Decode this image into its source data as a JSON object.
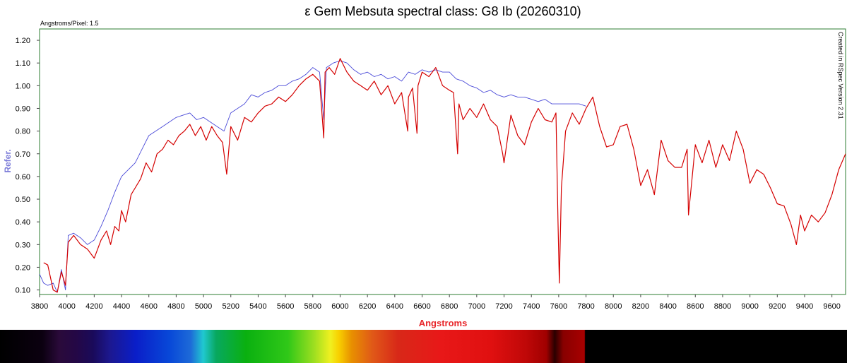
{
  "chart_data": {
    "type": "line",
    "title": "ε Gem Mebsuta spectral class: G8 Ib (20260310)",
    "dispersion_note": "Angstroms/Pixel: 1.5",
    "software_note": "Created in RSpec Version 2.31",
    "xlabel": "Angstroms",
    "ylabel": "Refer.",
    "xlim": [
      3800,
      9700
    ],
    "ylim": [
      0.08,
      1.25
    ],
    "x_ticks": [
      3800,
      4000,
      4200,
      4400,
      4600,
      4800,
      5000,
      5200,
      5400,
      5600,
      5800,
      6000,
      6200,
      6400,
      6600,
      6800,
      7000,
      7200,
      7400,
      7600,
      7800,
      8000,
      8200,
      8400,
      8600,
      8800,
      9000,
      9200,
      9400,
      9600
    ],
    "y_ticks": [
      "0.10",
      "0.20",
      "0.30",
      "0.40",
      "0.50",
      "0.60",
      "0.70",
      "0.80",
      "0.90",
      "1.00",
      "1.10",
      "1.20"
    ],
    "grid": false,
    "colors": {
      "frame": "#2e7d32",
      "observed": "#d40000",
      "reference": "#4a4ad8",
      "xlabel": "#e8262a",
      "ylabel": "#7b7bd8"
    },
    "series": [
      {
        "name": "",
        "color": "#d40000",
        "x": [
          3830,
          3860,
          3900,
          3930,
          3960,
          3990,
          4010,
          4050,
          4100,
          4150,
          4200,
          4250,
          4290,
          4320,
          4350,
          4380,
          4400,
          4430,
          4470,
          4500,
          4540,
          4580,
          4620,
          4660,
          4700,
          4740,
          4780,
          4820,
          4860,
          4900,
          4940,
          4980,
          5020,
          5060,
          5100,
          5140,
          5170,
          5200,
          5250,
          5300,
          5350,
          5400,
          5450,
          5500,
          5550,
          5600,
          5650,
          5700,
          5750,
          5800,
          5850,
          5880,
          5890,
          5920,
          5960,
          6000,
          6050,
          6100,
          6150,
          6200,
          6250,
          6300,
          6350,
          6400,
          6450,
          6495,
          6500,
          6530,
          6563,
          6570,
          6600,
          6650,
          6700,
          6750,
          6800,
          6830,
          6860,
          6870,
          6900,
          6950,
          7000,
          7050,
          7100,
          7150,
          7190,
          7200,
          7250,
          7300,
          7350,
          7400,
          7450,
          7500,
          7550,
          7580,
          7595,
          7605,
          7620,
          7650,
          7700,
          7750,
          7800,
          7850,
          7900,
          7950,
          8000,
          8050,
          8100,
          8150,
          8200,
          8250,
          8300,
          8350,
          8400,
          8450,
          8500,
          8540,
          8550,
          8600,
          8650,
          8700,
          8750,
          8800,
          8850,
          8900,
          8950,
          9000,
          9050,
          9100,
          9150,
          9200,
          9250,
          9300,
          9340,
          9370,
          9400,
          9450,
          9500,
          9550,
          9600,
          9650,
          9700
        ],
        "y": [
          0.22,
          0.21,
          0.1,
          0.09,
          0.18,
          0.12,
          0.31,
          0.34,
          0.3,
          0.28,
          0.24,
          0.32,
          0.36,
          0.3,
          0.38,
          0.36,
          0.45,
          0.4,
          0.52,
          0.55,
          0.59,
          0.66,
          0.62,
          0.7,
          0.72,
          0.76,
          0.74,
          0.78,
          0.8,
          0.83,
          0.78,
          0.82,
          0.76,
          0.82,
          0.78,
          0.75,
          0.61,
          0.82,
          0.76,
          0.86,
          0.84,
          0.88,
          0.91,
          0.92,
          0.95,
          0.93,
          0.96,
          1.0,
          1.03,
          1.05,
          1.02,
          0.77,
          1.06,
          1.08,
          1.05,
          1.12,
          1.06,
          1.02,
          1.0,
          0.98,
          1.02,
          0.96,
          1.0,
          0.92,
          0.97,
          0.8,
          0.95,
          0.99,
          0.79,
          1.0,
          1.06,
          1.04,
          1.08,
          1.0,
          0.98,
          0.97,
          0.7,
          0.92,
          0.85,
          0.9,
          0.86,
          0.92,
          0.85,
          0.82,
          0.7,
          0.66,
          0.87,
          0.78,
          0.74,
          0.84,
          0.9,
          0.85,
          0.84,
          0.88,
          0.4,
          0.13,
          0.55,
          0.8,
          0.88,
          0.83,
          0.9,
          0.95,
          0.82,
          0.73,
          0.74,
          0.82,
          0.83,
          0.72,
          0.56,
          0.63,
          0.52,
          0.76,
          0.67,
          0.64,
          0.64,
          0.72,
          0.43,
          0.74,
          0.66,
          0.76,
          0.64,
          0.74,
          0.67,
          0.8,
          0.72,
          0.57,
          0.63,
          0.61,
          0.55,
          0.48,
          0.47,
          0.39,
          0.3,
          0.43,
          0.36,
          0.43,
          0.4,
          0.44,
          0.52,
          0.63,
          0.7
        ]
      },
      {
        "name": "",
        "color": "#4a4ad8",
        "x": [
          3800,
          3830,
          3860,
          3900,
          3930,
          3960,
          3990,
          4010,
          4050,
          4100,
          4150,
          4200,
          4250,
          4300,
          4350,
          4400,
          4450,
          4500,
          4550,
          4600,
          4650,
          4700,
          4750,
          4800,
          4850,
          4900,
          4950,
          5000,
          5050,
          5100,
          5150,
          5200,
          5250,
          5300,
          5350,
          5400,
          5450,
          5500,
          5550,
          5600,
          5650,
          5700,
          5750,
          5800,
          5850,
          5880,
          5900,
          5950,
          6000,
          6050,
          6100,
          6150,
          6200,
          6250,
          6300,
          6350,
          6400,
          6450,
          6500,
          6550,
          6600,
          6650,
          6700,
          6750,
          6800,
          6850,
          6900,
          6950,
          7000,
          7050,
          7100,
          7150,
          7200,
          7250,
          7300,
          7350,
          7400,
          7450,
          7500,
          7550,
          7600,
          7650,
          7700,
          7750,
          7800
        ],
        "y": [
          0.17,
          0.13,
          0.12,
          0.13,
          0.09,
          0.19,
          0.1,
          0.34,
          0.35,
          0.33,
          0.3,
          0.32,
          0.38,
          0.45,
          0.53,
          0.6,
          0.63,
          0.66,
          0.72,
          0.78,
          0.8,
          0.82,
          0.84,
          0.86,
          0.87,
          0.88,
          0.85,
          0.86,
          0.84,
          0.82,
          0.8,
          0.88,
          0.9,
          0.92,
          0.96,
          0.95,
          0.97,
          0.98,
          1.0,
          1.0,
          1.02,
          1.03,
          1.05,
          1.08,
          1.06,
          0.85,
          1.08,
          1.1,
          1.11,
          1.1,
          1.07,
          1.05,
          1.06,
          1.04,
          1.05,
          1.03,
          1.04,
          1.02,
          1.06,
          1.05,
          1.07,
          1.06,
          1.07,
          1.06,
          1.06,
          1.03,
          1.02,
          1.0,
          0.99,
          0.97,
          0.98,
          0.96,
          0.95,
          0.96,
          0.95,
          0.95,
          0.94,
          0.93,
          0.94,
          0.92,
          0.92,
          0.92,
          0.92,
          0.92,
          0.91
        ]
      }
    ]
  },
  "spectrum_strip": {
    "gradient_stops": [
      {
        "offset": 0.0,
        "color": "#000000"
      },
      {
        "offset": 0.05,
        "color": "#0b0010"
      },
      {
        "offset": 0.07,
        "color": "#2a0a3a"
      },
      {
        "offset": 0.09,
        "color": "#240846"
      },
      {
        "offset": 0.11,
        "color": "#1a0a5a"
      },
      {
        "offset": 0.13,
        "color": "#1c1890"
      },
      {
        "offset": 0.16,
        "color": "#0a1ec8"
      },
      {
        "offset": 0.2,
        "color": "#0848d8"
      },
      {
        "offset": 0.225,
        "color": "#1d6ad8"
      },
      {
        "offset": 0.24,
        "color": "#20c8d0"
      },
      {
        "offset": 0.255,
        "color": "#08a860"
      },
      {
        "offset": 0.29,
        "color": "#0ab010"
      },
      {
        "offset": 0.34,
        "color": "#30c818"
      },
      {
        "offset": 0.37,
        "color": "#9ade20"
      },
      {
        "offset": 0.39,
        "color": "#f0f020"
      },
      {
        "offset": 0.4,
        "color": "#f8d000"
      },
      {
        "offset": 0.415,
        "color": "#e89000"
      },
      {
        "offset": 0.44,
        "color": "#e05818"
      },
      {
        "offset": 0.47,
        "color": "#d82818"
      },
      {
        "offset": 0.52,
        "color": "#e81818"
      },
      {
        "offset": 0.58,
        "color": "#e01010"
      },
      {
        "offset": 0.62,
        "color": "#c00808"
      },
      {
        "offset": 0.645,
        "color": "#a00000"
      },
      {
        "offset": 0.655,
        "color": "#2a0000"
      },
      {
        "offset": 0.665,
        "color": "#880000"
      },
      {
        "offset": 0.69,
        "color": "#a80000"
      },
      {
        "offset": 0.691,
        "color": "#000000"
      },
      {
        "offset": 1.0,
        "color": "#000000"
      }
    ]
  }
}
